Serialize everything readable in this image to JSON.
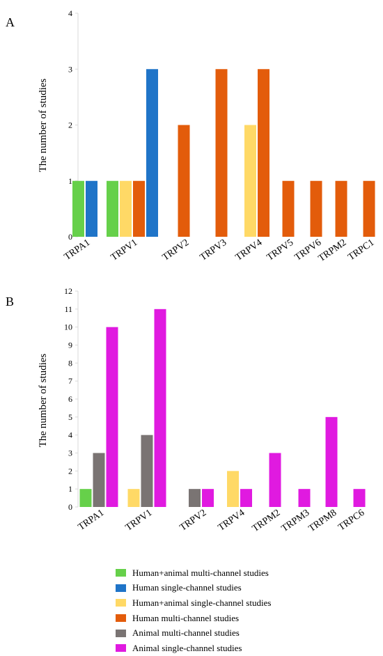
{
  "colors": {
    "Human+animal multi-channel studies": "#66d04a",
    "Human single-channel studies": "#1f74c8",
    "Human+animal single-channel studies": "#ffd966",
    "Human multi-channel studies": "#e35c0b",
    "Animal multi-channel studies": "#7a7473",
    "Animal single-channel studies": "#e01ae0"
  },
  "legend": [
    {
      "label": "Human+animal multi-channel studies",
      "color": "#66d04a"
    },
    {
      "label": "Human single-channel studies",
      "color": "#1f74c8"
    },
    {
      "label": "Human+animal single-channel studies",
      "color": "#ffd966"
    },
    {
      "label": "Human multi-channel studies",
      "color": "#e35c0b"
    },
    {
      "label": "Animal multi-channel studies",
      "color": "#7a7473"
    },
    {
      "label": "Animal single-channel studies",
      "color": "#e01ae0"
    }
  ],
  "chart_data": [
    {
      "type": "bar",
      "panel": "A",
      "ylabel": "The number of studies",
      "ylim": [
        0,
        4
      ],
      "yticks": [
        0,
        1,
        2,
        3,
        4
      ],
      "categories": [
        "TRPA1",
        "TRPV1",
        "TRPV2",
        "TRPV3",
        "TRPV4",
        "TRPV5",
        "TRPV6",
        "TRPM2",
        "TRPC1"
      ],
      "bars": [
        {
          "category": "TRPA1",
          "series": "Human+animal multi-channel studies",
          "value": 1
        },
        {
          "category": "TRPA1",
          "series": "Human single-channel studies",
          "value": 1
        },
        {
          "category": "TRPV1",
          "series": "Human+animal multi-channel studies",
          "value": 1
        },
        {
          "category": "TRPV1",
          "series": "Human+animal single-channel studies",
          "value": 1
        },
        {
          "category": "TRPV1",
          "series": "Human multi-channel studies",
          "value": 1
        },
        {
          "category": "TRPV1",
          "series": "Human single-channel studies",
          "value": 3
        },
        {
          "category": "TRPV2",
          "series": "Human multi-channel studies",
          "value": 2
        },
        {
          "category": "TRPV3",
          "series": "Human multi-channel studies",
          "value": 3
        },
        {
          "category": "TRPV4",
          "series": "Human+animal single-channel studies",
          "value": 2
        },
        {
          "category": "TRPV4",
          "series": "Human multi-channel studies",
          "value": 3
        },
        {
          "category": "TRPV5",
          "series": "Human multi-channel studies",
          "value": 1
        },
        {
          "category": "TRPV6",
          "series": "Human multi-channel studies",
          "value": 1
        },
        {
          "category": "TRPM2",
          "series": "Human multi-channel studies",
          "value": 1
        },
        {
          "category": "TRPC1",
          "series": "Human multi-channel studies",
          "value": 1
        }
      ]
    },
    {
      "type": "bar",
      "panel": "B",
      "ylabel": "The number of studies",
      "ylim": [
        0,
        12
      ],
      "yticks": [
        0,
        1,
        2,
        3,
        4,
        5,
        6,
        7,
        8,
        9,
        10,
        11,
        12
      ],
      "categories": [
        "TRPA1",
        "TRPV1",
        "TRPV2",
        "TRPV4",
        "TRPM2",
        "TRPM3",
        "TRPM8",
        "TRPC6"
      ],
      "bars": [
        {
          "category": "TRPA1",
          "series": "Human+animal multi-channel studies",
          "value": 1
        },
        {
          "category": "TRPA1",
          "series": "Animal multi-channel studies",
          "value": 3
        },
        {
          "category": "TRPA1",
          "series": "Animal single-channel studies",
          "value": 10
        },
        {
          "category": "TRPV1",
          "series": "Human+animal single-channel studies",
          "value": 1
        },
        {
          "category": "TRPV1",
          "series": "Animal multi-channel studies",
          "value": 4
        },
        {
          "category": "TRPV1",
          "series": "Animal single-channel studies",
          "value": 11
        },
        {
          "category": "TRPV2",
          "series": "Animal multi-channel studies",
          "value": 1
        },
        {
          "category": "TRPV2",
          "series": "Animal single-channel studies",
          "value": 1
        },
        {
          "category": "TRPV4",
          "series": "Human+animal single-channel studies",
          "value": 2
        },
        {
          "category": "TRPV4",
          "series": "Animal single-channel studies",
          "value": 1
        },
        {
          "category": "TRPM2",
          "series": "Animal single-channel studies",
          "value": 3
        },
        {
          "category": "TRPM3",
          "series": "Animal single-channel studies",
          "value": 1
        },
        {
          "category": "TRPM8",
          "series": "Animal single-channel studies",
          "value": 5
        },
        {
          "category": "TRPC6",
          "series": "Animal single-channel studies",
          "value": 1
        }
      ]
    }
  ]
}
